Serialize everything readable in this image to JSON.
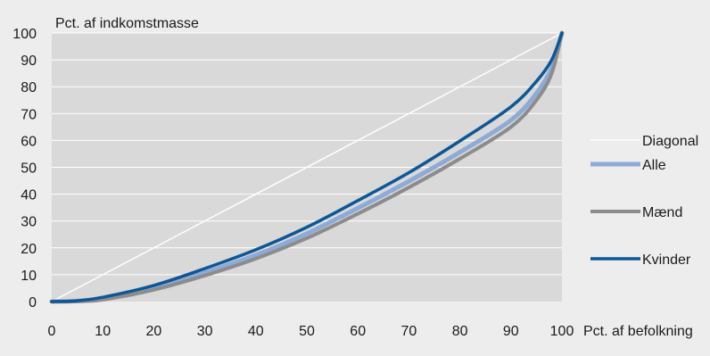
{
  "chart_data": {
    "type": "line",
    "title": "",
    "xlabel": "Pct. af befolkning",
    "ylabel": "Pct. af indkomstmasse",
    "xlim": [
      0,
      100
    ],
    "ylim": [
      0,
      100
    ],
    "x_ticks": [
      0,
      10,
      20,
      30,
      40,
      50,
      60,
      70,
      80,
      90,
      100
    ],
    "y_ticks": [
      0,
      10,
      20,
      30,
      40,
      50,
      60,
      70,
      80,
      90,
      100
    ],
    "grid": "horizontal",
    "legend_position": "right",
    "x": [
      0,
      5,
      10,
      20,
      30,
      40,
      50,
      60,
      70,
      80,
      90,
      95,
      98,
      100
    ],
    "series": [
      {
        "name": "Diagonal",
        "color": "#ffffff",
        "x": [
          0,
          100
        ],
        "values": [
          0,
          100
        ]
      },
      {
        "name": "Alle",
        "color": "#8eaad6",
        "values": [
          0,
          0.2,
          1,
          5,
          10.8,
          17.3,
          25.3,
          34.8,
          44.8,
          55.6,
          67.5,
          77.5,
          87,
          100
        ]
      },
      {
        "name": "Mænd",
        "color": "#8c8c8c",
        "values": [
          0,
          0.1,
          0.7,
          4.4,
          9.7,
          16,
          23.6,
          32.7,
          42.5,
          53.2,
          65,
          75,
          85,
          100
        ]
      },
      {
        "name": "Kvinder",
        "color": "#0e5796",
        "values": [
          0,
          0.3,
          1.6,
          6,
          12.3,
          19.3,
          27.7,
          37.6,
          48,
          59.8,
          72.5,
          82,
          90,
          100
        ]
      }
    ]
  }
}
